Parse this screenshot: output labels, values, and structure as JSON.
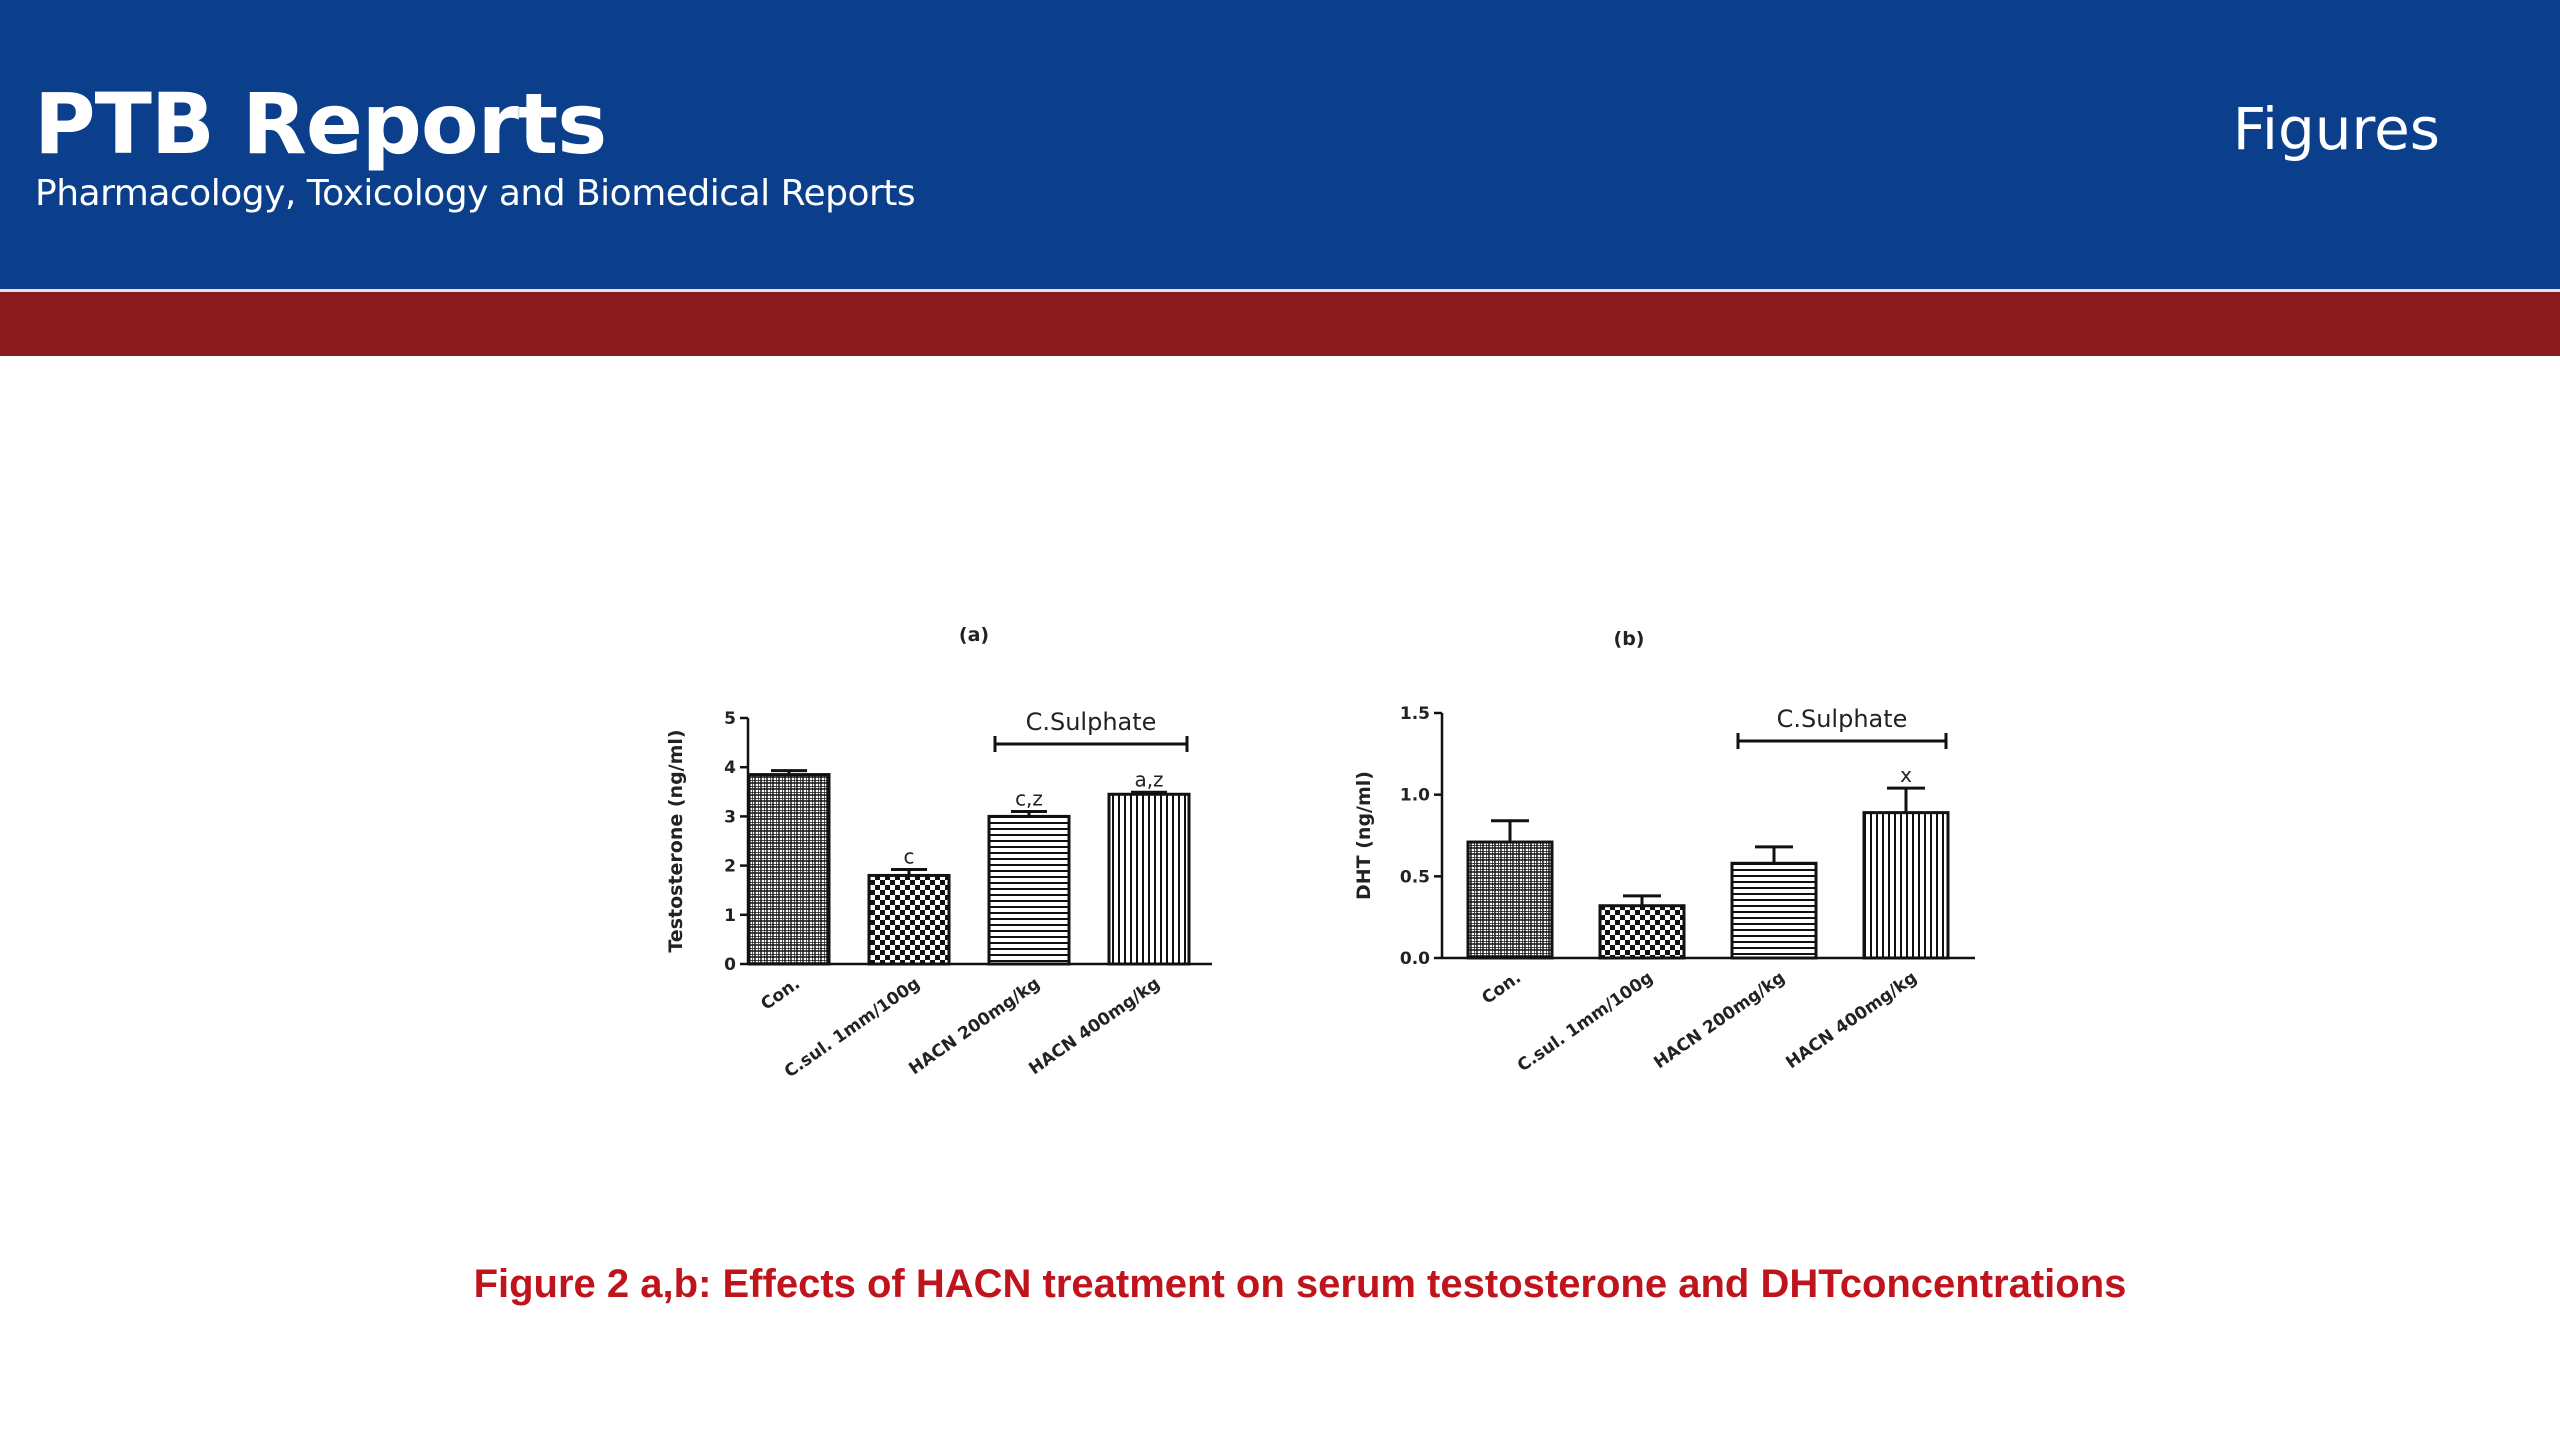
{
  "header": {
    "brand_title": "PTB Reports",
    "brand_subtitle": "Pharmacology, Toxicology and Biomedical Reports",
    "section_label": "Figures"
  },
  "colors": {
    "header_bg": "#0b3f8c",
    "band": "#8b1a1f",
    "caption": "#c0141c"
  },
  "caption": "Figure 2 a,b: Effects of HACN treatment on serum testosterone and DHTconcentrations",
  "chart_data": [
    {
      "type": "bar",
      "panel_label": "(a)",
      "categories": [
        "Con.",
        "C.sul. 1mm/100g",
        "HACN 200mg/kg",
        "HACN 400mg/kg"
      ],
      "values": [
        3.85,
        1.8,
        3.0,
        3.45
      ],
      "errors": [
        0.08,
        0.12,
        0.1,
        0.04
      ],
      "significance": [
        "",
        "c",
        "c,z",
        "a,z"
      ],
      "patterns": [
        "grid",
        "checker",
        "horizontal",
        "vertical"
      ],
      "ylabel": "Testosterone (ng/ml)",
      "ylim": [
        0,
        5
      ],
      "yticks": [
        "0",
        "1",
        "2",
        "3",
        "4",
        "5"
      ],
      "bracket": {
        "label": "C.Sulphate",
        "from_index": 2,
        "to_index": 3
      }
    },
    {
      "type": "bar",
      "panel_label": "(b)",
      "categories": [
        "Con.",
        "C.sul. 1mm/100g",
        "HACN 200mg/kg",
        "HACN 400mg/kg"
      ],
      "values": [
        0.71,
        0.32,
        0.58,
        0.89
      ],
      "errors": [
        0.13,
        0.06,
        0.1,
        0.15
      ],
      "significance": [
        "",
        "",
        "",
        "x"
      ],
      "patterns": [
        "grid",
        "checker",
        "horizontal",
        "vertical"
      ],
      "ylabel": "DHT (ng/ml)",
      "ylim": [
        0,
        1.5
      ],
      "yticks": [
        "0.0",
        "0.5",
        "1.0",
        "1.5"
      ],
      "bracket": {
        "label": "C.Sulphate",
        "from_index": 2,
        "to_index": 3
      }
    }
  ]
}
